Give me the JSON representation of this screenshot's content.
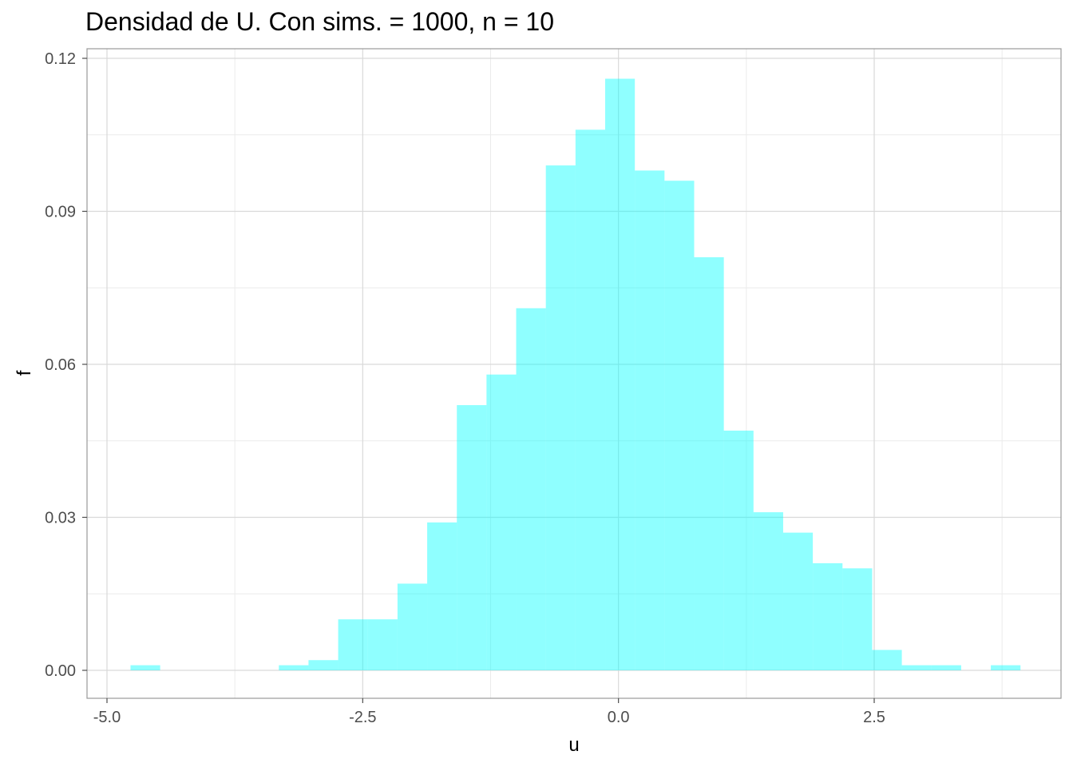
{
  "chart_data": {
    "type": "bar",
    "title": "Densidad de U. Con  sims. = 1000, n = 10",
    "xlabel": "u",
    "ylabel": "f",
    "xlim": [
      -5.0,
      4.0
    ],
    "ylim": [
      -0.0055,
      0.1205
    ],
    "x_ticks": [
      -5.0,
      -2.5,
      0.0,
      2.5
    ],
    "x_tick_labels": [
      "-5.0",
      "-2.5",
      "0.0",
      "2.5"
    ],
    "y_ticks": [
      0.0,
      0.03,
      0.06,
      0.09,
      0.12
    ],
    "y_tick_labels": [
      "0.00",
      "0.03",
      "0.06",
      "0.09",
      "0.12"
    ],
    "grid": true,
    "bar_color": "#00ffff",
    "bar_opacity": 0.44,
    "bins": [
      {
        "x0": -4.77,
        "x1": -4.48,
        "value": 0.001
      },
      {
        "x0": -4.48,
        "x1": -4.19,
        "value": 0.0
      },
      {
        "x0": -4.19,
        "x1": -3.9,
        "value": 0.0
      },
      {
        "x0": -3.9,
        "x1": -3.61,
        "value": 0.0
      },
      {
        "x0": -3.61,
        "x1": -3.32,
        "value": 0.0
      },
      {
        "x0": -3.32,
        "x1": -3.03,
        "value": 0.001
      },
      {
        "x0": -3.03,
        "x1": -2.74,
        "value": 0.002
      },
      {
        "x0": -2.74,
        "x1": -2.45,
        "value": 0.01
      },
      {
        "x0": -2.45,
        "x1": -2.16,
        "value": 0.01
      },
      {
        "x0": -2.16,
        "x1": -1.87,
        "value": 0.017
      },
      {
        "x0": -1.87,
        "x1": -1.58,
        "value": 0.029
      },
      {
        "x0": -1.58,
        "x1": -1.29,
        "value": 0.052
      },
      {
        "x0": -1.29,
        "x1": -1.0,
        "value": 0.058
      },
      {
        "x0": -1.0,
        "x1": -0.71,
        "value": 0.071
      },
      {
        "x0": -0.71,
        "x1": -0.42,
        "value": 0.099
      },
      {
        "x0": -0.42,
        "x1": -0.13,
        "value": 0.106
      },
      {
        "x0": -0.13,
        "x1": 0.16,
        "value": 0.116
      },
      {
        "x0": 0.16,
        "x1": 0.45,
        "value": 0.098
      },
      {
        "x0": 0.45,
        "x1": 0.74,
        "value": 0.096
      },
      {
        "x0": 0.74,
        "x1": 1.03,
        "value": 0.081
      },
      {
        "x0": 1.03,
        "x1": 1.32,
        "value": 0.047
      },
      {
        "x0": 1.32,
        "x1": 1.61,
        "value": 0.031
      },
      {
        "x0": 1.61,
        "x1": 1.9,
        "value": 0.027
      },
      {
        "x0": 1.9,
        "x1": 2.19,
        "value": 0.021
      },
      {
        "x0": 2.19,
        "x1": 2.48,
        "value": 0.02
      },
      {
        "x0": 2.48,
        "x1": 2.77,
        "value": 0.004
      },
      {
        "x0": 2.77,
        "x1": 3.06,
        "value": 0.001
      },
      {
        "x0": 3.06,
        "x1": 3.35,
        "value": 0.001
      },
      {
        "x0": 3.35,
        "x1": 3.64,
        "value": 0.0
      },
      {
        "x0": 3.64,
        "x1": 3.93,
        "value": 0.001
      }
    ]
  }
}
